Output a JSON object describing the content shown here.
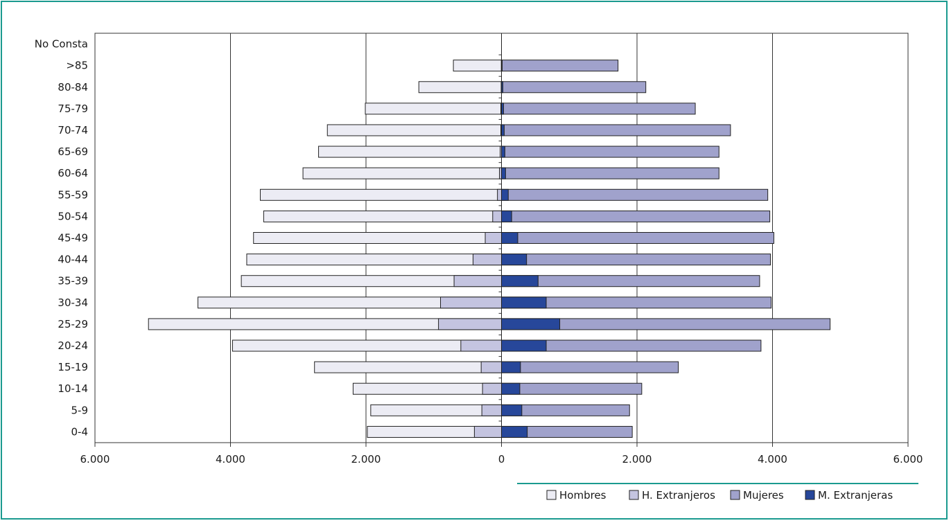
{
  "colors": {
    "border": "#1a9a8f",
    "hombres": "#ececf4",
    "h_extranjeros": "#c4c4e0",
    "mujeres": "#a0a2cc",
    "m_extranjeras": "#27479a",
    "gridline": "#333333"
  },
  "chart_data": {
    "type": "bar",
    "orientation": "horizontal",
    "layout": "population-pyramid",
    "categories": [
      "0-4",
      "5-9",
      "10-14",
      "15-19",
      "20-24",
      "25-29",
      "30-34",
      "35-39",
      "40-44",
      "45-49",
      "50-54",
      "55-59",
      "60-64",
      "65-69",
      "70-74",
      "75-79",
      "80-84",
      ">85",
      "No Consta"
    ],
    "series": [
      {
        "name": "Hombres",
        "side": "left",
        "values": [
          1980,
          1930,
          2190,
          2760,
          3970,
          5210,
          4480,
          3840,
          3760,
          3660,
          3510,
          3560,
          2930,
          2700,
          2570,
          2010,
          1220,
          710,
          0
        ]
      },
      {
        "name": "H. Extranjeros",
        "side": "left",
        "values": [
          400,
          290,
          280,
          300,
          600,
          930,
          900,
          700,
          420,
          240,
          130,
          60,
          30,
          20,
          10,
          10,
          5,
          3,
          0
        ]
      },
      {
        "name": "Mujeres",
        "side": "right",
        "values": [
          1930,
          1890,
          2070,
          2610,
          3830,
          4850,
          3980,
          3810,
          3970,
          4020,
          3960,
          3930,
          3210,
          3210,
          3380,
          2860,
          2130,
          1720,
          0
        ]
      },
      {
        "name": "M. Extranjeras",
        "side": "right",
        "values": [
          380,
          300,
          270,
          280,
          660,
          860,
          660,
          540,
          370,
          240,
          150,
          100,
          60,
          50,
          40,
          30,
          20,
          10,
          0
        ]
      }
    ],
    "xlim": [
      -6000,
      6000
    ],
    "xticks": [
      "6.000",
      "4.000",
      "2.000",
      "0",
      "2.000",
      "4.000",
      "6.000"
    ],
    "grid": true,
    "legend_position": "bottom-right",
    "title": "",
    "xlabel": "",
    "ylabel": ""
  }
}
